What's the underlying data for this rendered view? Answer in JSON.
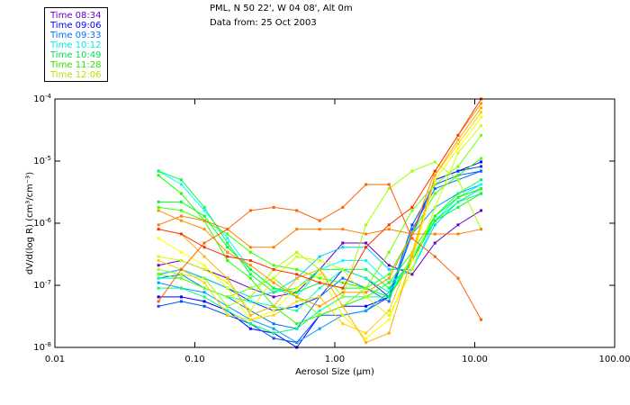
{
  "chart_data": {
    "type": "line",
    "title_lines": [
      "PML, N 50 22', W 04 08', Alt 0m",
      "Data from: 25 Oct 2003"
    ],
    "xlabel": "Aerosol Size (μm)",
    "ylabel": "dV/d(log R) (cm³/cm⁻³)",
    "xscale": "log",
    "yscale": "log",
    "xlim": [
      0.01,
      100
    ],
    "ylim": [
      1e-08,
      0.0001
    ],
    "x_tick_labels": [
      "0.01",
      "0.10",
      "1.00",
      "10.00",
      "100.00"
    ],
    "x_tick_values": [
      0.01,
      0.1,
      1,
      10,
      100
    ],
    "y_ticks": [
      {
        "value": 0.0001,
        "base": "10",
        "exp": "-4"
      },
      {
        "value": 1e-05,
        "base": "10",
        "exp": "-5"
      },
      {
        "value": 1e-06,
        "base": "10",
        "exp": "-6"
      },
      {
        "value": 1e-07,
        "base": "10",
        "exp": "-7"
      },
      {
        "value": 1e-08,
        "base": "10",
        "exp": "-8"
      }
    ],
    "legend_placement": "top-left, outside plot",
    "legend": [
      {
        "label": "Time 08:34",
        "color": "#6a00c8"
      },
      {
        "label": "Time 09:06",
        "color": "#0000ff"
      },
      {
        "label": "Time 09:33",
        "color": "#0070ff"
      },
      {
        "label": "Time 10:12",
        "color": "#00e8e8"
      },
      {
        "label": "Time 10:49",
        "color": "#00e050"
      },
      {
        "label": "Time 11:28",
        "color": "#30e000"
      },
      {
        "label": "Time 12:06",
        "color": "#b8e000"
      }
    ],
    "x": [
      0.055,
      0.08,
      0.117,
      0.171,
      0.25,
      0.366,
      0.535,
      0.78,
      1.14,
      1.67,
      2.44,
      3.57,
      5.2,
      7.6,
      11.1
    ],
    "series": [
      {
        "color": "#6a00c8",
        "values": [
          2.1e-07,
          2.5e-07,
          1.8e-07,
          1.3e-07,
          9e-08,
          6.5e-08,
          7.7e-08,
          1.8e-07,
          4.8e-07,
          4.8e-07,
          2.1e-07,
          1.5e-07,
          4.8e-07,
          9.4e-07,
          1.6e-06
        ]
      },
      {
        "color": "#0000ff",
        "values": [
          6.5e-08,
          6.5e-08,
          5.5e-08,
          3.9e-08,
          2e-08,
          1.7e-08,
          1e-08,
          3.3e-08,
          4.6e-08,
          4.6e-08,
          6.5e-08,
          6.7e-07,
          5e-06,
          6.9e-06,
          9.7e-06
        ]
      },
      {
        "color": "#0030ff",
        "values": [
          1.5e-07,
          1.8e-07,
          1.3e-07,
          9e-08,
          5.5e-08,
          3.9e-08,
          4.6e-08,
          6.5e-08,
          1.8e-07,
          1.3e-07,
          6.5e-08,
          6.7e-07,
          5e-06,
          6.9e-06,
          8.2e-06
        ]
      },
      {
        "color": "#0050ff",
        "values": [
          4.6e-08,
          5.5e-08,
          4.6e-08,
          3.3e-08,
          2.4e-08,
          1.4e-08,
          1.2e-08,
          3.3e-08,
          3.3e-08,
          3.9e-08,
          6.5e-08,
          9.4e-07,
          4.2e-06,
          5.9e-06,
          6.9e-06
        ]
      },
      {
        "color": "#0070ff",
        "values": [
          1.3e-07,
          1.5e-07,
          9e-08,
          6.5e-08,
          3.9e-08,
          2.4e-08,
          2e-08,
          6.5e-08,
          1.3e-07,
          9e-08,
          5.5e-08,
          8e-07,
          3.6e-06,
          5e-06,
          6.9e-06
        ]
      },
      {
        "color": "#00a0ff",
        "values": [
          1.1e-07,
          9e-08,
          7.7e-08,
          4.6e-08,
          2.8e-08,
          2e-08,
          1.2e-08,
          2e-08,
          3.3e-08,
          3.9e-08,
          7.7e-08,
          6.7e-07,
          1.8e-06,
          3e-06,
          4.2e-06
        ]
      },
      {
        "color": "#00d0ff",
        "values": [
          1.5e-07,
          1.8e-07,
          1.3e-07,
          9e-08,
          6.5e-08,
          7.7e-08,
          1.3e-07,
          2.9e-07,
          4.1e-07,
          4.1e-07,
          1.8e-07,
          1.8e-07,
          9.4e-07,
          2.2e-06,
          3.6e-06
        ]
      },
      {
        "color": "#00ffff",
        "values": [
          6.9e-06,
          4.2e-06,
          1.6e-06,
          5.7e-07,
          1.8e-07,
          9e-08,
          6.5e-08,
          1.8e-07,
          2.5e-07,
          2.5e-07,
          1.1e-07,
          1.8e-07,
          1.1e-06,
          2.6e-06,
          4.2e-06
        ]
      },
      {
        "color": "#00ffc0",
        "values": [
          1.3e-07,
          1.3e-07,
          9e-08,
          6.5e-08,
          5.5e-08,
          4.6e-08,
          3.9e-08,
          9e-08,
          1.8e-07,
          1.3e-07,
          7.7e-08,
          2.5e-07,
          1.3e-06,
          2.6e-06,
          3.6e-06
        ]
      },
      {
        "color": "#00ff80",
        "values": [
          9e-08,
          9e-08,
          6.5e-08,
          3.9e-08,
          2.4e-08,
          1.7e-08,
          2e-08,
          3.9e-08,
          6.5e-08,
          6.5e-08,
          6.5e-08,
          2.9e-07,
          1.1e-06,
          2.2e-06,
          3e-06
        ]
      },
      {
        "color": "#00ff50",
        "values": [
          6.9e-06,
          5e-06,
          1.8e-06,
          4.8e-07,
          1.5e-07,
          7.7e-08,
          9e-08,
          1.8e-07,
          1.8e-07,
          1.8e-07,
          9e-08,
          2.5e-07,
          1.3e-06,
          3e-06,
          5e-06
        ]
      },
      {
        "color": "#00ff20",
        "values": [
          2.2e-06,
          2.2e-06,
          1.3e-06,
          4.1e-07,
          1.8e-07,
          9e-08,
          7.7e-08,
          1.1e-07,
          9e-08,
          9e-08,
          6.5e-08,
          2.5e-07,
          1.1e-06,
          1.8e-06,
          3e-06
        ]
      },
      {
        "color": "#20ff00",
        "values": [
          5.9e-06,
          3e-06,
          1.1e-06,
          2.5e-07,
          1.3e-07,
          4.6e-08,
          2.4e-08,
          3.3e-08,
          4.6e-08,
          6.5e-08,
          1.1e-07,
          3.4e-07,
          1.3e-06,
          2.6e-06,
          3.6e-06
        ]
      },
      {
        "color": "#40ff00",
        "values": [
          1.8e-06,
          1.6e-06,
          1.1e-06,
          6.7e-07,
          3.4e-07,
          2.1e-07,
          1.8e-07,
          1.3e-07,
          1.1e-07,
          9e-08,
          1.5e-07,
          6.7e-07,
          3e-06,
          5.9e-06,
          1.1e-05
        ]
      },
      {
        "color": "#70ff00",
        "values": [
          1.5e-07,
          1.3e-07,
          9e-08,
          6.5e-08,
          9e-08,
          1.3e-07,
          6.5e-08,
          3.3e-08,
          4.6e-08,
          9e-08,
          3.4e-07,
          1.6e-06,
          4.2e-06,
          8.2e-06,
          2.6e-05
        ]
      },
      {
        "color": "#a0ff00",
        "values": [
          1.8e-07,
          1.5e-07,
          1.3e-07,
          4.6e-08,
          6.5e-08,
          1.8e-07,
          3.4e-07,
          1.8e-07,
          6.5e-08,
          9.4e-07,
          3.6e-06,
          6.9e-06,
          9.7e-06,
          5e-06,
          8e-07
        ]
      },
      {
        "color": "#d0ff00",
        "values": [
          2.9e-07,
          2.5e-07,
          1.8e-07,
          1.1e-07,
          3.9e-08,
          1.3e-07,
          2.9e-07,
          2.5e-07,
          1.8e-07,
          6.5e-08,
          3.3e-08,
          1.8e-07,
          1.8e-06,
          1.35e-05,
          3.7e-05
        ]
      },
      {
        "color": "#ffff00",
        "values": [
          5.7e-07,
          3.4e-07,
          2.1e-07,
          9e-08,
          2.8e-08,
          3.9e-08,
          9e-08,
          1.5e-07,
          3.3e-08,
          1.4e-08,
          2.8e-08,
          2.5e-07,
          5e-06,
          1.6e-05,
          5.1e-05
        ]
      },
      {
        "color": "#ffd000",
        "values": [
          2.5e-07,
          1.8e-07,
          1.1e-07,
          3.3e-08,
          2.8e-08,
          3.3e-08,
          5.5e-08,
          6.5e-08,
          2.4e-08,
          1.7e-08,
          3.9e-08,
          3.4e-07,
          5.9e-06,
          1.9e-05,
          6.1e-05
        ]
      },
      {
        "color": "#ffb000",
        "values": [
          8e-07,
          6.7e-07,
          2.9e-07,
          1.3e-07,
          3.3e-08,
          4.6e-08,
          1.3e-07,
          1.8e-07,
          4.6e-08,
          1.2e-08,
          1.7e-08,
          2.9e-07,
          5.9e-06,
          2.2e-05,
          7.2e-05
        ]
      },
      {
        "color": "#ff9000",
        "values": [
          1.6e-06,
          1.1e-06,
          8e-07,
          3.4e-07,
          2.1e-07,
          1.1e-07,
          6.5e-08,
          4.6e-08,
          7.7e-08,
          7.7e-08,
          1.3e-07,
          6.7e-07,
          6.9e-06,
          2.6e-05,
          8.5e-05
        ]
      },
      {
        "color": "#ff8000",
        "values": [
          9.4e-07,
          1.3e-06,
          1.1e-06,
          8e-07,
          4.1e-07,
          4.1e-07,
          8e-07,
          8e-07,
          8e-07,
          6.7e-07,
          8e-07,
          6.7e-07,
          6.7e-07,
          6.7e-07,
          8e-07
        ]
      },
      {
        "color": "#ff6000",
        "values": [
          5.5e-08,
          1.8e-07,
          4.8e-07,
          8e-07,
          1.6e-06,
          1.8e-06,
          1.6e-06,
          1.1e-06,
          1.8e-06,
          4.2e-06,
          4.2e-06,
          5.7e-07,
          2.9e-07,
          1.3e-07,
          2.8e-08
        ]
      },
      {
        "color": "#ff3000",
        "values": [
          8e-07,
          6.7e-07,
          4.1e-07,
          2.9e-07,
          2.5e-07,
          1.8e-07,
          1.5e-07,
          1.1e-07,
          9e-08,
          4.1e-07,
          9.4e-07,
          1.8e-06,
          6.9e-06,
          2.6e-05,
          0.0001
        ]
      }
    ]
  }
}
